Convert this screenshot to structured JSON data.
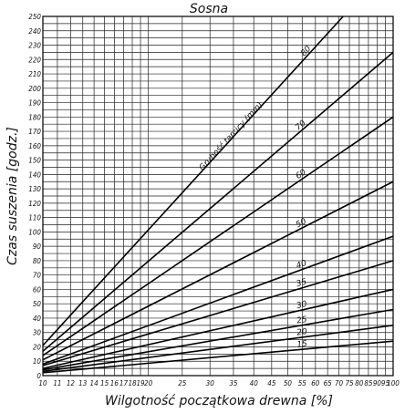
{
  "chart_data": {
    "type": "line",
    "title": "Sosna",
    "xlabel": "Wilgotność początkowa drewna [%]",
    "ylabel": "Czas suszenia [godz.]",
    "x_scale": "log",
    "xlim": [
      10,
      100
    ],
    "ylim": [
      0,
      250
    ],
    "grid": true,
    "x_ticks": [
      10,
      11,
      12,
      13,
      14,
      15,
      16,
      17,
      18,
      19,
      20,
      25,
      30,
      35,
      40,
      45,
      50,
      55,
      60,
      65,
      70,
      75,
      80,
      85,
      90,
      95,
      100
    ],
    "x_tick_labels": [
      "10",
      "11",
      "12",
      "13",
      "14",
      "15",
      "16",
      "17",
      "18",
      "19",
      "20",
      "25",
      "30",
      "35",
      "40",
      "45",
      "50",
      "55",
      "60",
      "65",
      "70",
      "75",
      "80",
      "85",
      "90",
      "95",
      "100"
    ],
    "y_ticks": [
      0,
      5,
      10,
      15,
      20,
      25,
      30,
      35,
      40,
      45,
      50,
      55,
      60,
      65,
      70,
      75,
      80,
      85,
      90,
      95,
      100,
      105,
      110,
      115,
      120,
      125,
      130,
      135,
      140,
      145,
      150,
      155,
      160,
      165,
      170,
      175,
      180,
      185,
      190,
      195,
      200,
      205,
      210,
      215,
      220,
      225,
      230,
      235,
      240,
      245,
      250
    ],
    "y_tick_labels": [
      "0",
      "",
      "10",
      "",
      "20",
      "",
      "30",
      "",
      "40",
      "",
      "50",
      "",
      "60",
      "",
      "70",
      "",
      "80",
      "",
      "90",
      "",
      "100",
      "",
      "110",
      "",
      "120",
      "",
      "130",
      "",
      "140",
      "",
      "150",
      "",
      "160",
      "",
      "170",
      "",
      "180",
      "",
      "190",
      "",
      "200",
      "",
      "210",
      "",
      "220",
      "",
      "230",
      "",
      "240",
      "",
      "250"
    ],
    "series_title": "Grubość tarcicy (mm)",
    "series": [
      {
        "name": "15",
        "x": [
          10,
          100
        ],
        "y": [
          2,
          24
        ]
      },
      {
        "name": "20",
        "x": [
          10,
          100
        ],
        "y": [
          3,
          35
        ]
      },
      {
        "name": "25",
        "x": [
          10,
          100
        ],
        "y": [
          4,
          46
        ]
      },
      {
        "name": "30",
        "x": [
          10,
          100
        ],
        "y": [
          5,
          60
        ]
      },
      {
        "name": "35",
        "x": [
          10,
          100
        ],
        "y": [
          7,
          80
        ]
      },
      {
        "name": "40",
        "x": [
          10,
          100
        ],
        "y": [
          8,
          97
        ]
      },
      {
        "name": "50",
        "x": [
          10,
          100
        ],
        "y": [
          11,
          135
        ]
      },
      {
        "name": "60",
        "x": [
          10,
          100
        ],
        "y": [
          14,
          180
        ]
      },
      {
        "name": "70",
        "x": [
          10,
          100
        ],
        "y": [
          17,
          225
        ]
      },
      {
        "name": "80",
        "x": [
          10,
          72
        ],
        "y": [
          21,
          250
        ]
      }
    ]
  }
}
